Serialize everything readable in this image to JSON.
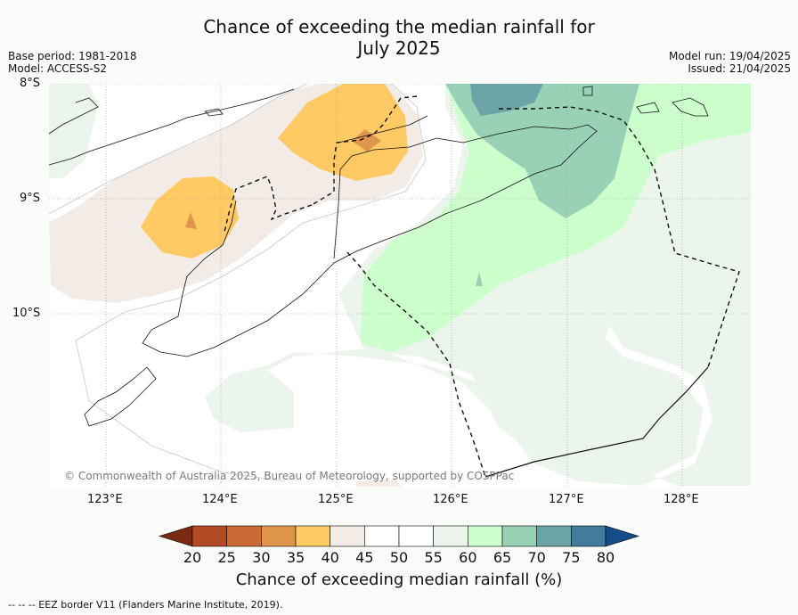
{
  "title_line1": "Chance of exceeding the median rainfall for",
  "title_line2": "July 2025",
  "meta_left": {
    "base_period": "Base period: 1981-2018",
    "model": "Model: ACCESS-S2"
  },
  "meta_right": {
    "model_run": "Model run: 19/04/2025",
    "issued": "Issued: 21/04/2025"
  },
  "lat_labels": [
    "8°S",
    "9°S",
    "10°S"
  ],
  "lon_labels": [
    "123°E",
    "124°E",
    "125°E",
    "126°E",
    "127°E",
    "128°E"
  ],
  "copyright": "© Commonwealth of Australia 2025, Bureau of Meteorology, supported by COSPPac",
  "colorbar": {
    "ticks": [
      "20",
      "25",
      "30",
      "35",
      "40",
      "45",
      "50",
      "55",
      "60",
      "65",
      "70",
      "75",
      "80"
    ],
    "colors": [
      "#7a2a12",
      "#b24a25",
      "#cc6a35",
      "#e0954c",
      "#ffca64",
      "#f2ebe6",
      "#ffffff",
      "#ffffff",
      "#ebf5eb",
      "#ccffcc",
      "#99d1b7",
      "#6ba3a7",
      "#437b9b",
      "#144d87"
    ],
    "label": "Chance of exceeding median rainfall (%)"
  },
  "footer": "--  --  -- EEZ border V11 (Flanders Marine Institute, 2019)."
}
